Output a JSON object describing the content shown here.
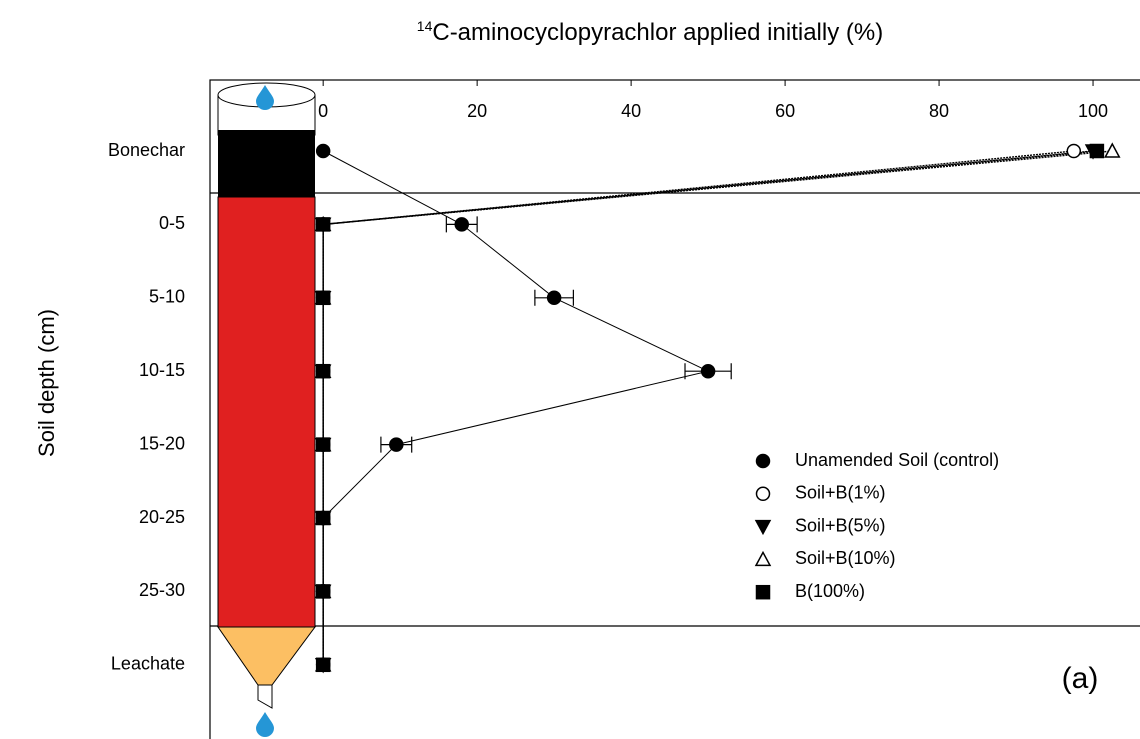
{
  "chart_data": {
    "type": "line",
    "title_superscript": "14",
    "title": "C-aminocyclopyrachlor applied initially (%)",
    "y_label": "Soil depth (cm)",
    "annotation": "(a)",
    "categories": [
      "Bonechar",
      "0-5",
      "5-10",
      "10-15",
      "15-20",
      "20-25",
      "25-30",
      "Leachate"
    ],
    "xlim": [
      -14.7,
      106.1
    ],
    "xticks": [
      0,
      20,
      40,
      60,
      80,
      100
    ],
    "series": [
      {
        "name": "Unamended Soil (control)",
        "color": "#000000",
        "marker": "circle",
        "filled": true,
        "values": [
          0,
          18,
          30,
          50,
          9.5,
          0,
          0,
          0
        ],
        "errors": [
          null,
          2,
          2.5,
          3,
          2,
          null,
          null,
          null
        ]
      },
      {
        "name": "Soil+B(1%)",
        "color": "#000000",
        "marker": "circle",
        "filled": false,
        "values": [
          97.5,
          0,
          0,
          0,
          0,
          0,
          0,
          0
        ]
      },
      {
        "name": "Soil+B(5%)",
        "color": "#000000",
        "marker": "triangle-down",
        "filled": true,
        "values": [
          100,
          0,
          0,
          0,
          0,
          0,
          0,
          0
        ]
      },
      {
        "name": "Soil+B(10%)",
        "color": "#000000",
        "marker": "triangle-up",
        "filled": false,
        "values": [
          102.5,
          0,
          0,
          0,
          0,
          0,
          0,
          0
        ]
      },
      {
        "name": "B(100%)",
        "color": "#000000",
        "marker": "square",
        "filled": true,
        "values": [
          100.5,
          0,
          0,
          0,
          0,
          0,
          0,
          0
        ]
      }
    ]
  }
}
